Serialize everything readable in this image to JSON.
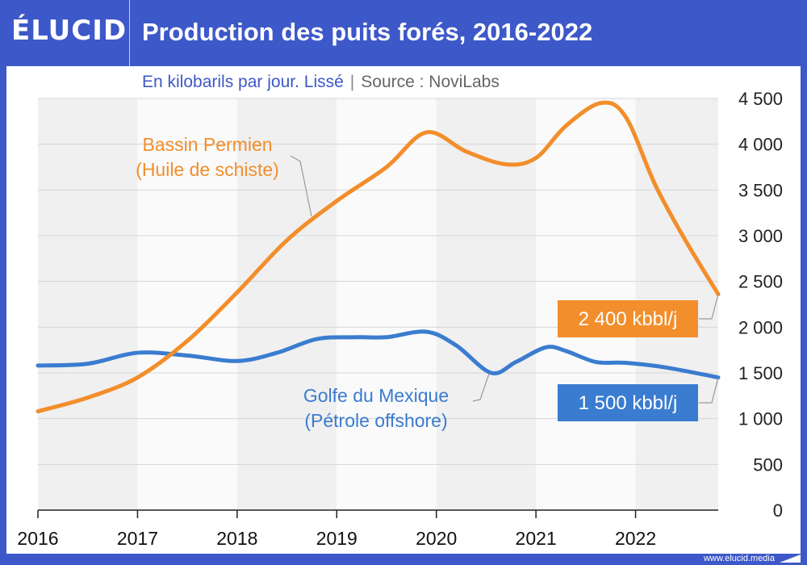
{
  "header": {
    "logo": "ÉLUCID",
    "title": "Production des puits forés, 2016-2022"
  },
  "subtitle": {
    "unit": "En kilobarils par jour. Lissé",
    "separator": "|",
    "source": "Source : NoviLabs"
  },
  "footer": {
    "url": "www.elucid.media"
  },
  "colors": {
    "permian": "#f28e2b",
    "gulf": "#3a7cd0",
    "brand": "#3d58c8"
  },
  "chart_data": {
    "type": "line",
    "title": "Production des puits forés, 2016-2022",
    "ylabel": "En kilobarils par jour",
    "x_ticks": [
      "2016",
      "2017",
      "2018",
      "2019",
      "2020",
      "2021",
      "2022"
    ],
    "xlim": [
      2016,
      2022.83
    ],
    "ylim": [
      0,
      4500
    ],
    "y_ticks": [
      "0",
      "500",
      "1 000",
      "1 500",
      "2 000",
      "2 500",
      "3 000",
      "3 500",
      "4 000",
      "4 500"
    ],
    "grid": true,
    "series": [
      {
        "name": "Bassin Permien (Huile de schiste)",
        "label_lines": [
          "Bassin Permien",
          "(Huile de schiste)"
        ],
        "color": "#f28e2b",
        "end_label": "2 400 kbbl/j",
        "points": [
          [
            2016.0,
            1080
          ],
          [
            2016.5,
            1230
          ],
          [
            2017.0,
            1450
          ],
          [
            2017.5,
            1850
          ],
          [
            2018.0,
            2380
          ],
          [
            2018.5,
            2950
          ],
          [
            2019.0,
            3380
          ],
          [
            2019.5,
            3750
          ],
          [
            2019.9,
            4130
          ],
          [
            2020.3,
            3920
          ],
          [
            2020.7,
            3780
          ],
          [
            2021.0,
            3850
          ],
          [
            2021.3,
            4200
          ],
          [
            2021.65,
            4450
          ],
          [
            2021.9,
            4300
          ],
          [
            2022.2,
            3550
          ],
          [
            2022.5,
            2950
          ],
          [
            2022.83,
            2360
          ]
        ]
      },
      {
        "name": "Golfe du Mexique (Pétrole offshore)",
        "label_lines": [
          "Golfe du Mexique",
          "(Pétrole offshore)"
        ],
        "color": "#3a7cd0",
        "end_label": "1 500 kbbl/j",
        "points": [
          [
            2016.0,
            1580
          ],
          [
            2016.5,
            1600
          ],
          [
            2017.0,
            1720
          ],
          [
            2017.5,
            1690
          ],
          [
            2018.0,
            1630
          ],
          [
            2018.4,
            1720
          ],
          [
            2018.8,
            1870
          ],
          [
            2019.2,
            1890
          ],
          [
            2019.5,
            1890
          ],
          [
            2019.9,
            1950
          ],
          [
            2020.2,
            1800
          ],
          [
            2020.55,
            1500
          ],
          [
            2020.8,
            1620
          ],
          [
            2021.1,
            1780
          ],
          [
            2021.3,
            1740
          ],
          [
            2021.6,
            1620
          ],
          [
            2021.9,
            1610
          ],
          [
            2022.3,
            1560
          ],
          [
            2022.83,
            1450
          ]
        ]
      }
    ]
  }
}
